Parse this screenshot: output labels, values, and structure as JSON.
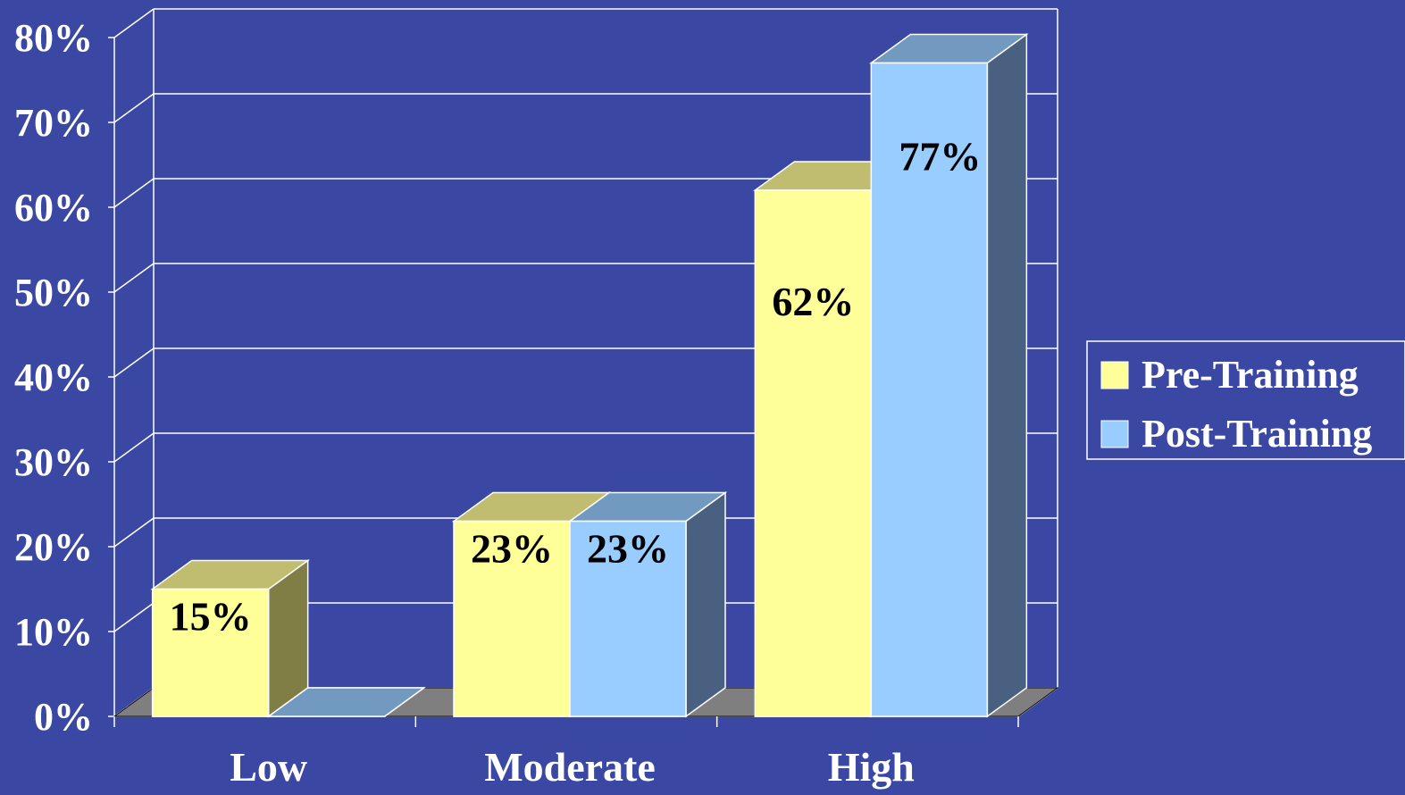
{
  "chart_data": {
    "type": "bar",
    "categories": [
      "Low",
      "Moderate",
      "High"
    ],
    "series": [
      {
        "name": "Pre-Training",
        "values": [
          15,
          23,
          62
        ],
        "labels": [
          "15%",
          "23%",
          "62%"
        ]
      },
      {
        "name": "Post-Training",
        "values": [
          0,
          23,
          77
        ],
        "labels": [
          "",
          "23%",
          "77%"
        ]
      }
    ],
    "y_ticks": [
      "0%",
      "10%",
      "20%",
      "30%",
      "40%",
      "50%",
      "60%",
      "70%",
      "80%"
    ],
    "ylim": [
      0,
      80
    ],
    "grid": true,
    "legend_position": "right",
    "style": "3d",
    "colors": {
      "background": "#3a48a3",
      "pre_front": "#ffff99",
      "pre_top": "#c0bc70",
      "pre_side": "#807d45",
      "post_front": "#99ccff",
      "post_top": "#7299c0",
      "post_side": "#4a6080",
      "floor": "#7f7f7f",
      "grid": "#ffffff",
      "text": "#ffffff",
      "value_text": "#000000"
    }
  }
}
